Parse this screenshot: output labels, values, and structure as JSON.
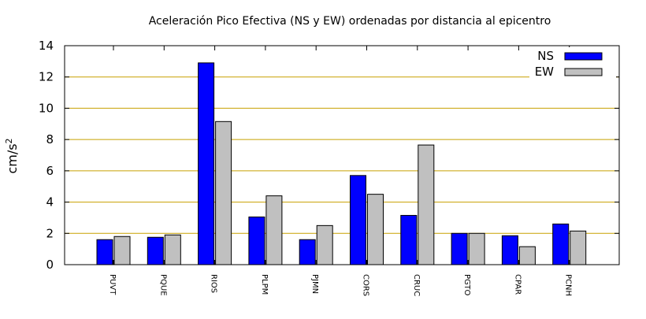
{
  "chart_data": {
    "type": "bar",
    "title": "Aceleración Pico Efectiva (NS y EW) ordenadas por distancia al epicentro",
    "xlabel": "",
    "ylabel": "cm/s",
    "ylabel_sup": "2",
    "ylim": [
      0,
      14
    ],
    "yticks": [
      0,
      2,
      4,
      6,
      8,
      10,
      12,
      14
    ],
    "grid": true,
    "legend_position": "top-right",
    "categories": [
      "PUVT",
      "PQUE",
      "RIOS",
      "PLPM",
      "PJMN",
      "CORS",
      "CRUC",
      "PGTO",
      "CPAR",
      "PCNH"
    ],
    "series": [
      {
        "name": "NS",
        "color": "#0000ff",
        "values": [
          1.6,
          1.75,
          12.9,
          3.05,
          1.6,
          5.7,
          3.15,
          2.0,
          1.85,
          2.6
        ]
      },
      {
        "name": "EW",
        "color": "#c0c0c0",
        "values": [
          1.8,
          1.9,
          9.15,
          4.4,
          2.5,
          4.5,
          7.65,
          2.0,
          1.15,
          2.15
        ]
      }
    ],
    "grid_color": "#c8a000"
  }
}
